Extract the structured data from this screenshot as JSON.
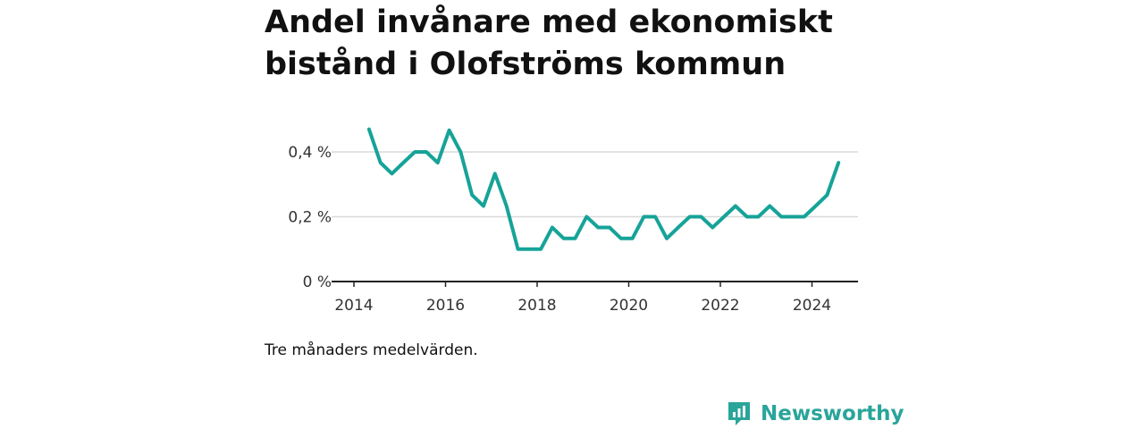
{
  "chart_data": {
    "type": "line",
    "title": "Andel invånare med ekonomiskt bistånd i Olofströms kommun",
    "note": "Tre månaders medelvärden.",
    "xlabel": "",
    "ylabel": "",
    "x_ticks": [
      "2014",
      "2016",
      "2018",
      "2020",
      "2022",
      "2024"
    ],
    "y_ticks": [
      "0 %",
      "0,2 %",
      "0,4 %"
    ],
    "xlim": [
      2014,
      2025.1
    ],
    "ylim": [
      0,
      0.48
    ],
    "grid": true,
    "series": [
      {
        "color": "#16a398",
        "x": [
          2014.33,
          2014.58,
          2014.83,
          2015.08,
          2015.33,
          2015.58,
          2015.83,
          2016.08,
          2016.33,
          2016.58,
          2016.83,
          2017.08,
          2017.33,
          2017.58,
          2017.83,
          2018.08,
          2018.33,
          2018.58,
          2018.83,
          2019.08,
          2019.33,
          2019.58,
          2019.83,
          2020.08,
          2020.33,
          2020.58,
          2020.83,
          2021.08,
          2021.33,
          2021.58,
          2021.83,
          2022.08,
          2022.33,
          2022.58,
          2022.83,
          2023.08,
          2023.33,
          2023.58,
          2023.83,
          2024.08,
          2024.33,
          2024.58
        ],
        "values": [
          0.47,
          0.367,
          0.333,
          0.367,
          0.4,
          0.4,
          0.367,
          0.467,
          0.4,
          0.267,
          0.233,
          0.333,
          0.233,
          0.1,
          0.1,
          0.1,
          0.167,
          0.133,
          0.133,
          0.2,
          0.167,
          0.167,
          0.133,
          0.133,
          0.2,
          0.2,
          0.133,
          0.167,
          0.2,
          0.2,
          0.167,
          0.2,
          0.233,
          0.2,
          0.2,
          0.233,
          0.2,
          0.2,
          0.2,
          0.233,
          0.267,
          0.367
        ]
      }
    ]
  },
  "brand": {
    "name": "Newsworthy",
    "color": "#2aa59a"
  }
}
